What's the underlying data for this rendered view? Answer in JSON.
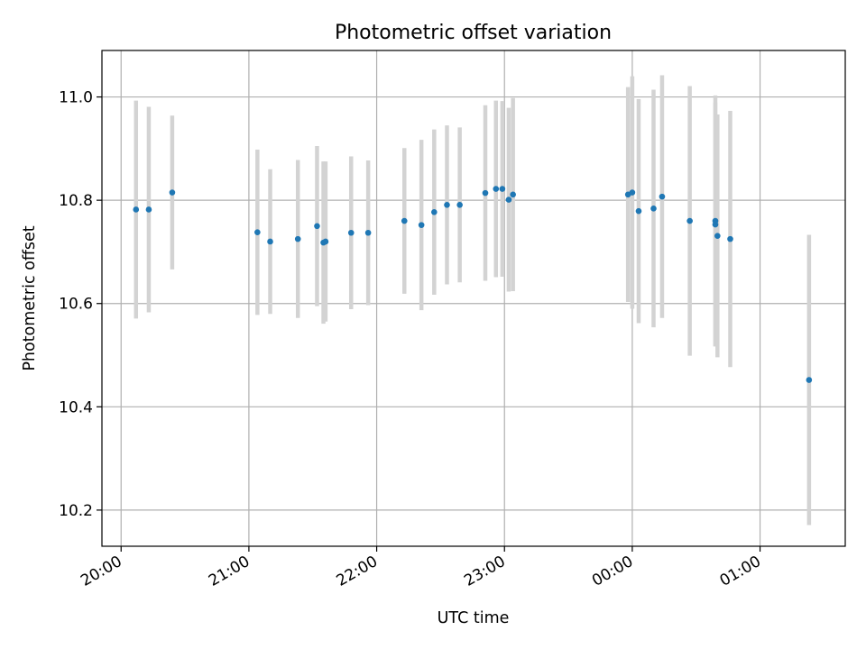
{
  "chart_data": {
    "type": "scatter",
    "title": "Photometric offset variation",
    "xlabel": "UTC time",
    "ylabel": "Photometric offset",
    "x_axis": "time",
    "x_reference_date": "",
    "x_ticks": [
      "20:00",
      "21:00",
      "22:00",
      "23:00",
      "00:00",
      "01:00"
    ],
    "xlim": [
      "19:51",
      "01:40"
    ],
    "y_ticks": [
      "10.2",
      "10.4",
      "10.6",
      "10.8",
      "11.0"
    ],
    "ylim": [
      10.13,
      11.09
    ],
    "grid": true,
    "marker_color": "#1f77b4",
    "errorbar_color": "#d3d3d3",
    "points": [
      {
        "x": "20:07",
        "y": 10.782,
        "yerr": 0.211
      },
      {
        "x": "20:13",
        "y": 10.782,
        "yerr": 0.199
      },
      {
        "x": "20:24",
        "y": 10.815,
        "yerr": 0.149
      },
      {
        "x": "21:04",
        "y": 10.738,
        "yerr": 0.16
      },
      {
        "x": "21:10",
        "y": 10.72,
        "yerr": 0.14
      },
      {
        "x": "21:23",
        "y": 10.725,
        "yerr": 0.153
      },
      {
        "x": "21:32",
        "y": 10.75,
        "yerr": 0.155
      },
      {
        "x": "21:35",
        "y": 10.718,
        "yerr": 0.157
      },
      {
        "x": "21:36",
        "y": 10.72,
        "yerr": 0.155
      },
      {
        "x": "21:48",
        "y": 10.737,
        "yerr": 0.148
      },
      {
        "x": "21:56",
        "y": 10.737,
        "yerr": 0.14
      },
      {
        "x": "22:13",
        "y": 10.76,
        "yerr": 0.141
      },
      {
        "x": "22:21",
        "y": 10.752,
        "yerr": 0.165
      },
      {
        "x": "22:27",
        "y": 10.777,
        "yerr": 0.16
      },
      {
        "x": "22:33",
        "y": 10.791,
        "yerr": 0.154
      },
      {
        "x": "22:39",
        "y": 10.791,
        "yerr": 0.15
      },
      {
        "x": "22:51",
        "y": 10.814,
        "yerr": 0.17
      },
      {
        "x": "22:56",
        "y": 10.822,
        "yerr": 0.171
      },
      {
        "x": "22:59",
        "y": 10.822,
        "yerr": 0.17
      },
      {
        "x": "23:02",
        "y": 10.801,
        "yerr": 0.178
      },
      {
        "x": "23:04",
        "y": 10.811,
        "yerr": 0.187
      },
      {
        "x": "23:58",
        "y": 10.811,
        "yerr": 0.208
      },
      {
        "x": "00:00",
        "y": 10.815,
        "yerr": 0.225
      },
      {
        "x": "00:03",
        "y": 10.779,
        "yerr": 0.217
      },
      {
        "x": "00:10",
        "y": 10.784,
        "yerr": 0.23
      },
      {
        "x": "00:14",
        "y": 10.807,
        "yerr": 0.235
      },
      {
        "x": "00:27",
        "y": 10.76,
        "yerr": 0.261
      },
      {
        "x": "00:39",
        "y": 10.753,
        "yerr": 0.236
      },
      {
        "x": "00:39",
        "y": 10.76,
        "yerr": 0.243
      },
      {
        "x": "00:40",
        "y": 10.731,
        "yerr": 0.235
      },
      {
        "x": "00:46",
        "y": 10.725,
        "yerr": 0.248
      },
      {
        "x": "01:23",
        "y": 10.452,
        "yerr": 0.281
      }
    ]
  }
}
